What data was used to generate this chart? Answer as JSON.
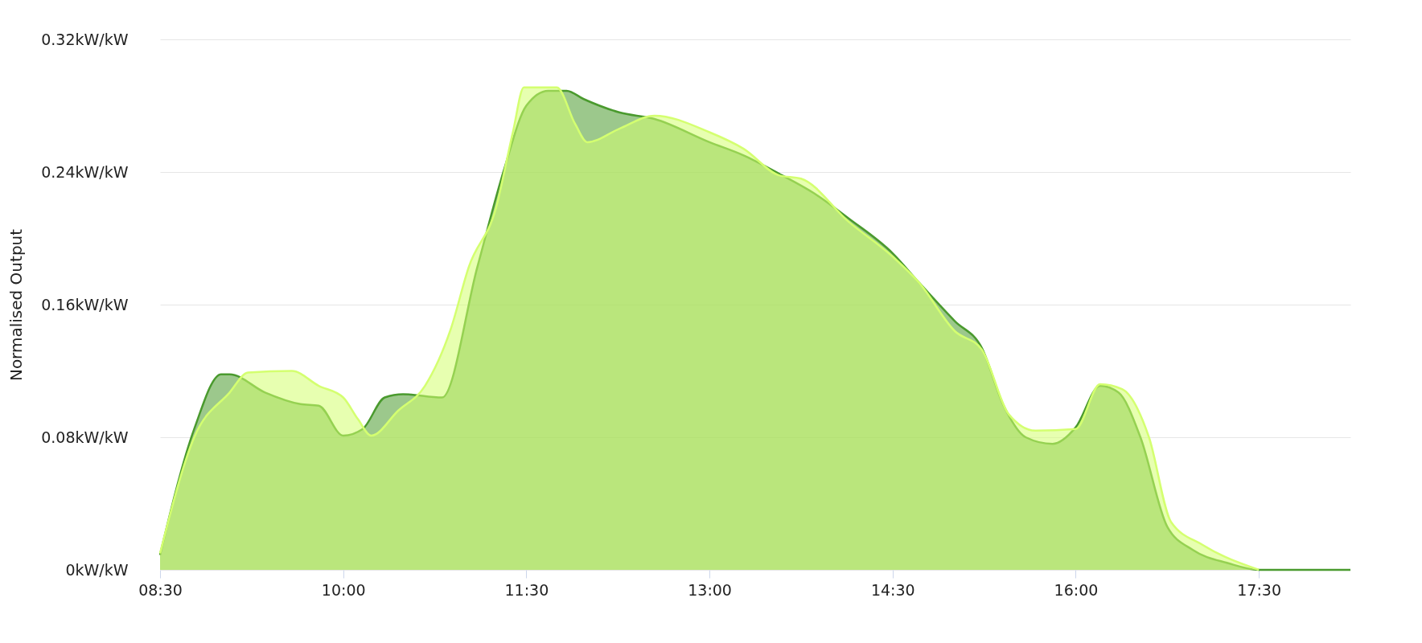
{
  "chart_data": {
    "type": "area",
    "ylabel": "Normalised Output",
    "grid": "y",
    "xlim": [
      8.5,
      18.25
    ],
    "xticks": [
      {
        "value": 8.5,
        "label": "08:30"
      },
      {
        "value": 10,
        "label": "10:00"
      },
      {
        "value": 11.5,
        "label": "11:30"
      },
      {
        "value": 13,
        "label": "13:00"
      },
      {
        "value": 14.5,
        "label": "14:30"
      },
      {
        "value": 16,
        "label": "16:00"
      },
      {
        "value": 17.5,
        "label": "17:30"
      }
    ],
    "ylim": [
      0,
      0.32
    ],
    "yticks": [
      {
        "value": 0,
        "label": "0kW/kW"
      },
      {
        "value": 0.08,
        "label": "0.08kW/kW"
      },
      {
        "value": 0.16,
        "label": "0.16kW/kW"
      },
      {
        "value": 0.24,
        "label": "0.24kW/kW"
      },
      {
        "value": 0.32,
        "label": "0.32kW/kW"
      }
    ],
    "series": [
      {
        "color": "#4a9a2e",
        "x": [
          8.5,
          8.78,
          9.0,
          9.07,
          9.36,
          9.65,
          9.8,
          10.0,
          10.16,
          10.34,
          10.49,
          10.81,
          11.1,
          11.32,
          11.5,
          11.68,
          11.83,
          11.97,
          12.26,
          12.55,
          13.0,
          13.28,
          13.57,
          13.86,
          14.14,
          14.5,
          14.72,
          15.01,
          15.23,
          15.41,
          15.59,
          15.81,
          16.0,
          16.2,
          16.35,
          16.53,
          16.75,
          16.96,
          17.25,
          17.5,
          18.25
        ],
        "values": [
          0.009,
          0.085,
          0.118,
          0.118,
          0.107,
          0.1,
          0.099,
          0.081,
          0.085,
          0.104,
          0.106,
          0.104,
          0.183,
          0.242,
          0.28,
          0.289,
          0.289,
          0.284,
          0.276,
          0.272,
          0.258,
          0.25,
          0.239,
          0.227,
          0.212,
          0.191,
          0.173,
          0.15,
          0.134,
          0.099,
          0.08,
          0.076,
          0.086,
          0.111,
          0.107,
          0.08,
          0.026,
          0.012,
          0.004,
          0,
          0
        ]
      },
      {
        "color": "#d4ff70",
        "x": [
          8.5,
          8.78,
          9.07,
          9.22,
          9.58,
          9.8,
          10.0,
          10.12,
          10.23,
          10.45,
          10.67,
          10.88,
          11.03,
          11.25,
          11.39,
          11.48,
          11.75,
          11.9,
          12.0,
          12.26,
          12.55,
          13.0,
          13.28,
          13.57,
          13.75,
          14.14,
          14.5,
          14.72,
          15.01,
          15.23,
          15.45,
          15.67,
          16.0,
          16.2,
          16.38,
          16.6,
          16.78,
          17.04,
          17.5
        ],
        "values": [
          0.01,
          0.08,
          0.107,
          0.119,
          0.12,
          0.111,
          0.104,
          0.091,
          0.081,
          0.096,
          0.111,
          0.145,
          0.183,
          0.218,
          0.264,
          0.291,
          0.291,
          0.269,
          0.258,
          0.266,
          0.274,
          0.264,
          0.254,
          0.238,
          0.236,
          0.21,
          0.189,
          0.173,
          0.144,
          0.133,
          0.094,
          0.084,
          0.085,
          0.112,
          0.109,
          0.08,
          0.029,
          0.015,
          0
        ]
      }
    ]
  }
}
